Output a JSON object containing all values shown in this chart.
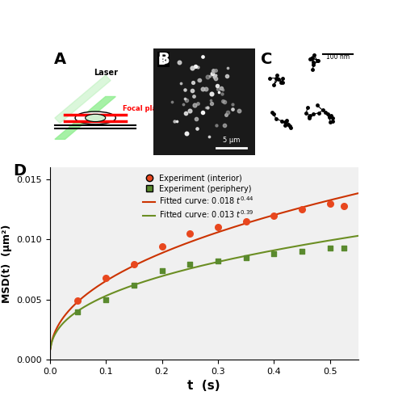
{
  "interior_t": [
    0.05,
    0.1,
    0.15,
    0.2,
    0.25,
    0.3,
    0.35,
    0.4,
    0.45,
    0.5,
    0.525
  ],
  "interior_msd": [
    0.0049,
    0.0068,
    0.0079,
    0.0094,
    0.0105,
    0.011,
    0.0115,
    0.012,
    0.0125,
    0.013,
    0.0128
  ],
  "periphery_t": [
    0.05,
    0.1,
    0.15,
    0.2,
    0.25,
    0.3,
    0.35,
    0.4,
    0.45,
    0.5,
    0.525
  ],
  "periphery_msd": [
    0.004,
    0.005,
    0.0062,
    0.0074,
    0.0079,
    0.0082,
    0.0085,
    0.0088,
    0.009,
    0.0093,
    0.0093
  ],
  "interior_D": 0.018,
  "interior_beta": 0.44,
  "periphery_D": 0.013,
  "periphery_beta": 0.39,
  "interior_color": "#e8471e",
  "periphery_color": "#5a8a2e",
  "interior_line_color": "#cc3300",
  "periphery_line_color": "#6b8e23",
  "xlim": [
    0,
    0.55
  ],
  "ylim": [
    0,
    0.016
  ],
  "xlabel": "t  (s)",
  "ylabel": "MSD(t)  (μm²)",
  "panel_label_D": "D",
  "legend_interior": "Experiment (interior)",
  "legend_periphery": "Experiment (periphery)",
  "legend_fit_interior": "Fitted curve: 0.018 t",
  "legend_fit_interior_exp": "0.44",
  "legend_fit_periphery": "Fitted curve: 0.013 t",
  "legend_fit_periphery_exp": "0.39",
  "yticks": [
    0,
    0.005,
    0.01,
    0.015
  ],
  "xticks": [
    0,
    0.1,
    0.2,
    0.3,
    0.4,
    0.5
  ],
  "bg_color": "#f0f0f0",
  "panel_A_label": "A",
  "panel_B_label": "B",
  "panel_C_label": "C"
}
